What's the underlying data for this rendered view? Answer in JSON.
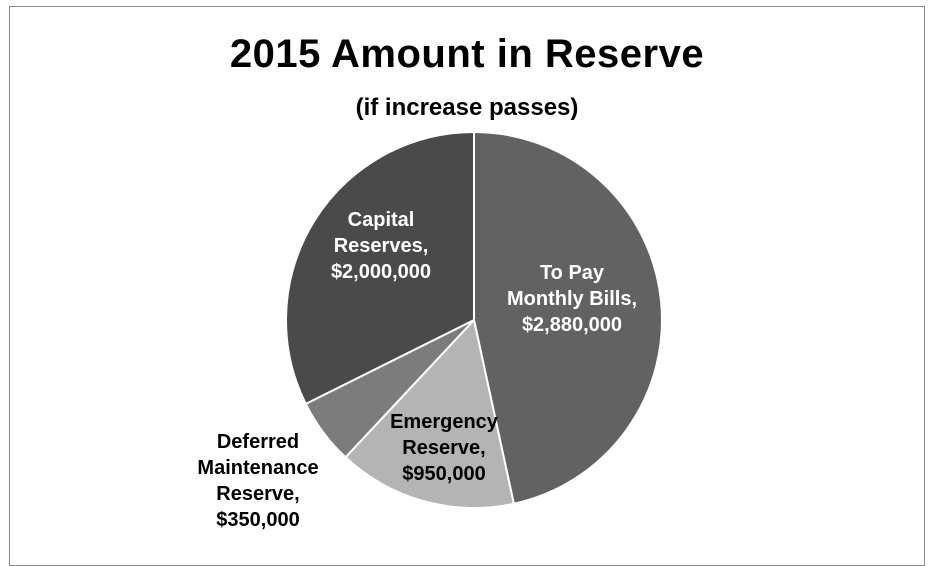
{
  "chart_data": {
    "type": "pie",
    "title": "2015 Amount in Reserve",
    "subtitle": "(if increase passes)",
    "slices": [
      {
        "name": "To Pay Monthly Bills",
        "value": 2880000,
        "label_lines": [
          "To Pay",
          "Monthly Bills,",
          "$2,880,000"
        ],
        "color": "#626262",
        "label_color": "#ffffff"
      },
      {
        "name": "Emergency Reserve",
        "value": 950000,
        "label_lines": [
          "Emergency",
          "Reserve,",
          "$950,000"
        ],
        "color": "#b4b4b4",
        "label_color": "#000000"
      },
      {
        "name": "Deferred Maintenance Reserve",
        "value": 350000,
        "label_lines": [
          "Deferred",
          "Maintenance",
          "Reserve,",
          "$350,000"
        ],
        "color": "#7c7c7c",
        "label_color": "#000000"
      },
      {
        "name": "Capital Reserves",
        "value": 2000000,
        "label_lines": [
          "Capital",
          "Reserves,",
          "$2,000,000"
        ],
        "color": "#4a4a4a",
        "label_color": "#ffffff"
      }
    ],
    "start_angle": "12 o'clock",
    "direction": "clockwise",
    "legend": "none",
    "slice_border_color": "#ffffff"
  }
}
